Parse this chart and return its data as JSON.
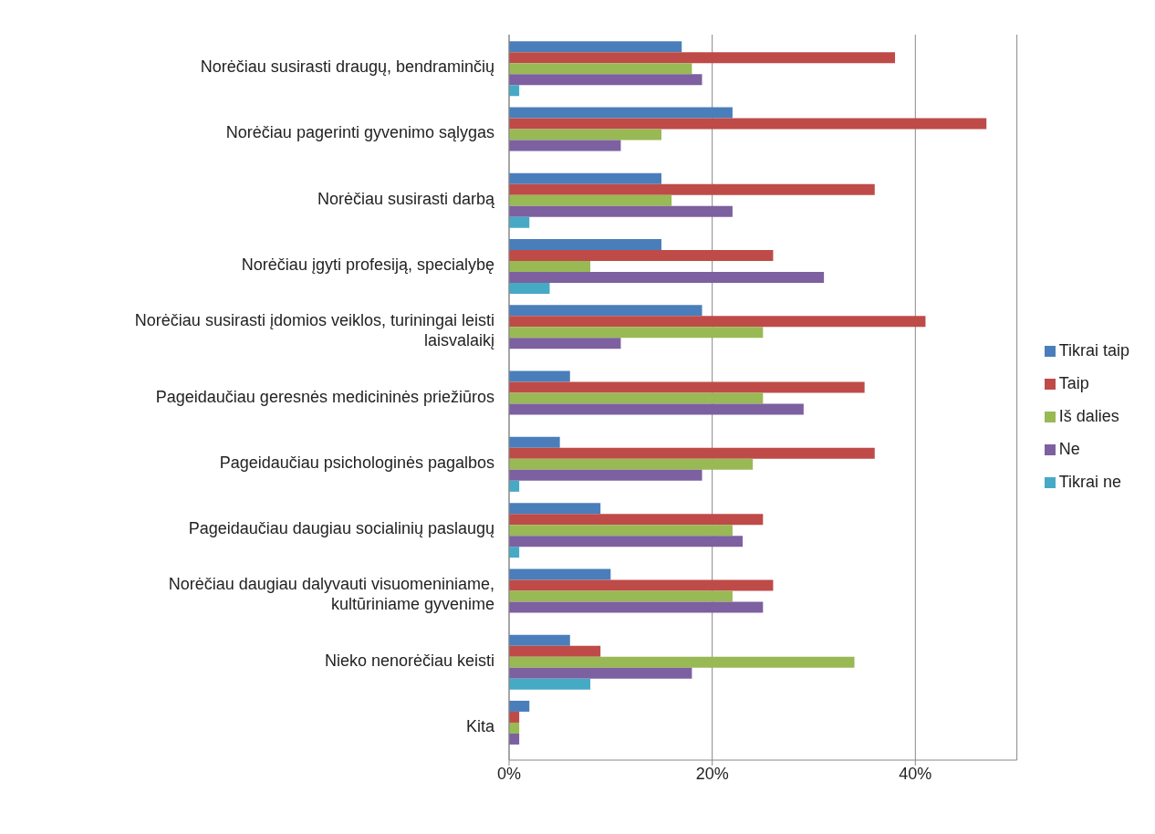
{
  "chart_data": {
    "type": "bar",
    "orientation": "horizontal",
    "categories": [
      "Norėčiau susirasti draugų, bendraminčių",
      "Norėčiau pagerinti gyvenimo sąlygas",
      "Norėčiau susirasti darbą",
      "Norėčiau įgyti profesiją, specialybę",
      "Norėčiau susirasti įdomios veiklos, turiningai leisti laisvalaikį",
      "Pageidaučiau geresnės medicininės priežiūros",
      "Pageidaučiau psichologinės pagalbos",
      "Pageidaučiau daugiau socialinių paslaugų",
      "Norėčiau daugiau dalyvauti visuomeniniame, kultūriniame gyvenime",
      "Nieko nenorėčiau keisti",
      "Kita"
    ],
    "series": [
      {
        "name": "Tikrai taip",
        "color": "#4a7ebb",
        "values": [
          17,
          22,
          15,
          15,
          19,
          6,
          5,
          9,
          10,
          6,
          2
        ]
      },
      {
        "name": "Taip",
        "color": "#be4b48",
        "values": [
          38,
          47,
          36,
          26,
          41,
          35,
          36,
          25,
          26,
          9,
          1
        ]
      },
      {
        "name": "Iš dalies",
        "color": "#98b954",
        "values": [
          18,
          15,
          16,
          8,
          25,
          25,
          24,
          22,
          22,
          34,
          1
        ]
      },
      {
        "name": "Ne",
        "color": "#7d60a0",
        "values": [
          19,
          11,
          22,
          31,
          11,
          29,
          19,
          23,
          25,
          18,
          1
        ]
      },
      {
        "name": "Tikrai ne",
        "color": "#46aac5",
        "values": [
          1,
          null,
          2,
          4,
          null,
          null,
          1,
          1,
          null,
          8,
          null
        ]
      }
    ],
    "xlim": [
      0,
      50
    ],
    "xticks": [
      {
        "value": 0,
        "label": "0%"
      },
      {
        "value": 20,
        "label": "20%"
      },
      {
        "value": 40,
        "label": "40%"
      }
    ],
    "grid": "x",
    "legend": "right"
  }
}
